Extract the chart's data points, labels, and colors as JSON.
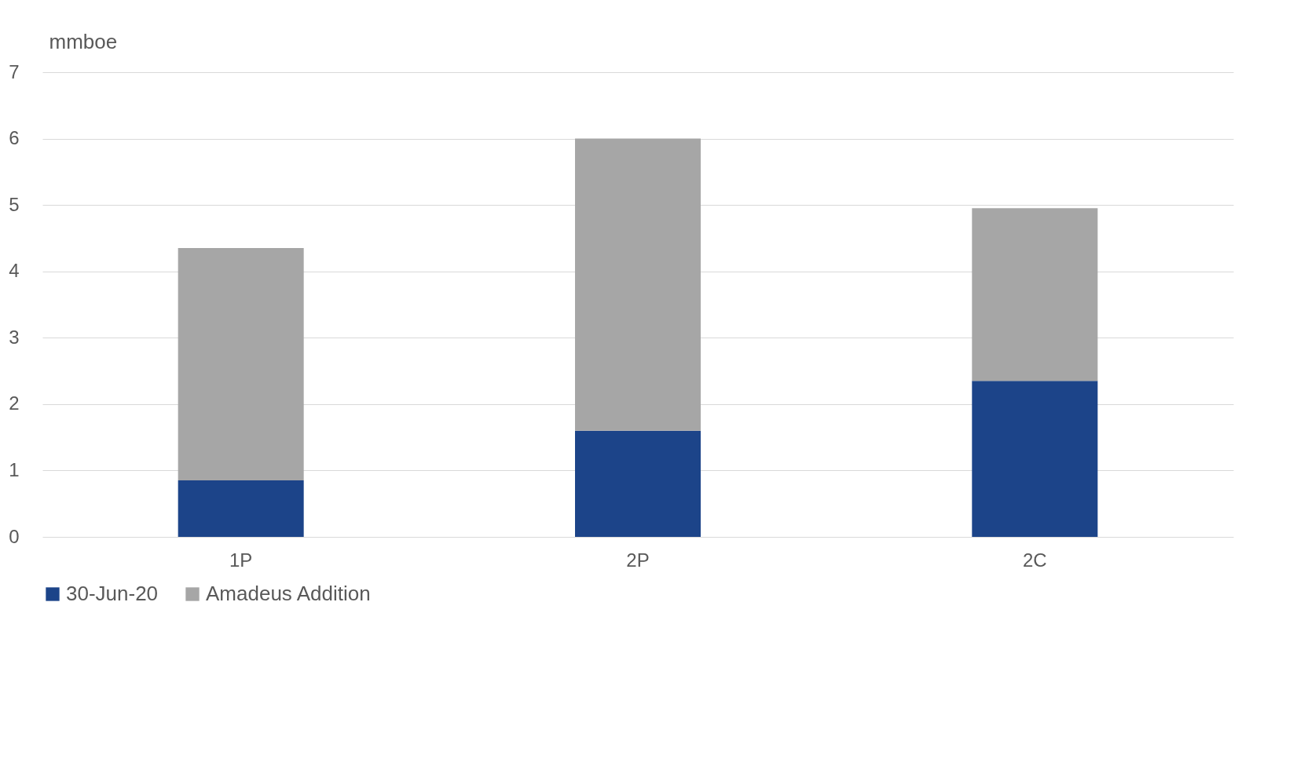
{
  "chart_data": {
    "type": "bar",
    "stacked": true,
    "ylabel": "mmboe",
    "categories": [
      "1P",
      "2P",
      "2C"
    ],
    "series": [
      {
        "name": "30-Jun-20",
        "color": "#1c4489",
        "values": [
          0.85,
          1.6,
          2.35
        ]
      },
      {
        "name": "Amadeus Addition",
        "color": "#a6a6a6",
        "values": [
          3.5,
          4.4,
          2.6
        ]
      }
    ],
    "ylim": [
      0,
      7
    ],
    "yticks": [
      0,
      1,
      2,
      3,
      4,
      5,
      6,
      7
    ],
    "grid": "y",
    "legend": "bottom"
  }
}
